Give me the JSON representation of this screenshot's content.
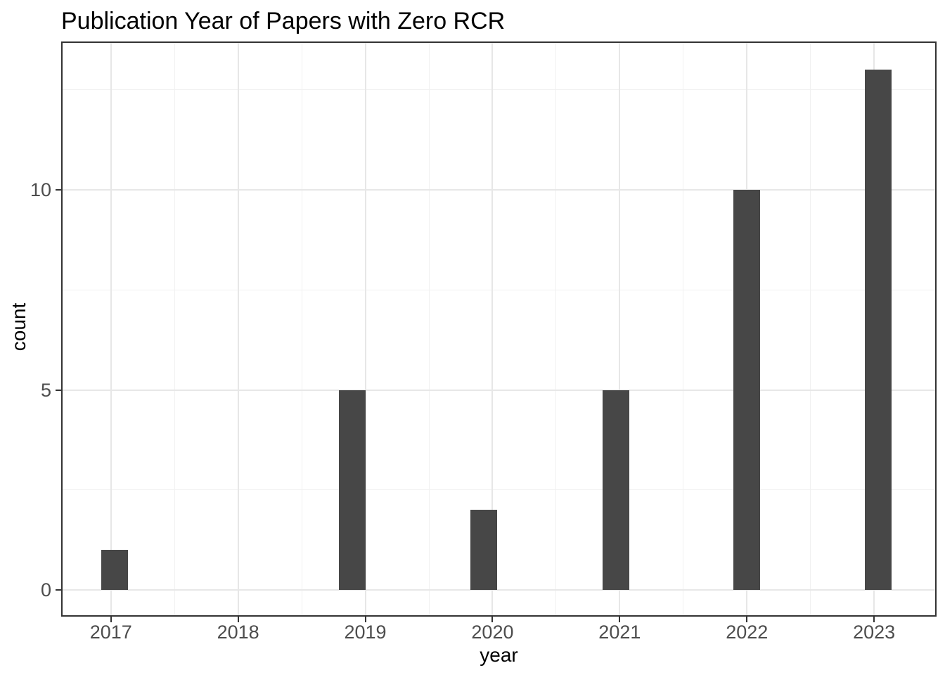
{
  "chart_data": {
    "type": "bar",
    "subtype": "histogram",
    "title": "Publication Year of Papers with Zero RCR",
    "xlabel": "year",
    "ylabel": "count",
    "categories": [
      "2017",
      "2018",
      "2019",
      "2020",
      "2021",
      "2022",
      "2023"
    ],
    "values": [
      1,
      0,
      5,
      2,
      5,
      10,
      13
    ],
    "year_counts": {
      "2017": 1,
      "2018": 0,
      "2019": 5,
      "2020": 2,
      "2021": 5,
      "2022": 10,
      "2023": 13
    },
    "bars": [
      {
        "x": 2017.03,
        "count": 1
      },
      {
        "x": 2018.9,
        "count": 5
      },
      {
        "x": 2019.93,
        "count": 2
      },
      {
        "x": 2020.97,
        "count": 5
      },
      {
        "x": 2022.0,
        "count": 10
      },
      {
        "x": 2023.03,
        "count": 13
      }
    ],
    "x_major_ticks": [
      2017,
      2018,
      2019,
      2020,
      2021,
      2022,
      2023
    ],
    "x_minor_ticks": [
      2017.5,
      2018.5,
      2019.5,
      2020.5,
      2021.5,
      2022.5
    ],
    "y_major_ticks": [
      0,
      5,
      10
    ],
    "y_tick_labels": [
      "0",
      "5",
      "10"
    ],
    "y_minor_ticks": [
      2.5,
      7.5,
      12.5
    ],
    "xlim": [
      2016.62,
      2023.48
    ],
    "ylim": [
      -0.63,
      13.67
    ],
    "bar_width_years": 0.21,
    "grid": "on",
    "legend": "none",
    "colors": {
      "bar_fill": "#474747",
      "panel_border": "#333333",
      "grid_major": "#e7e7e7",
      "grid_minor": "#f1f1f1",
      "tick_mark": "#333333",
      "tick_label": "#4d4d4d",
      "axis_title": "#000000",
      "title": "#000000",
      "background": "#ffffff"
    }
  }
}
